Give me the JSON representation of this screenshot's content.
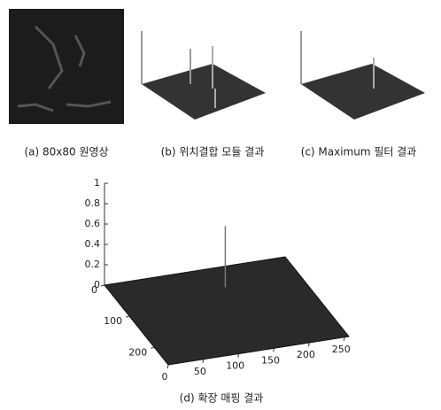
{
  "figure": {
    "panels": [
      {
        "caption": "(a) 80x80 원영상"
      },
      {
        "caption": "(b) 위치결합 모듈 결과"
      },
      {
        "caption": "(c) Maximum 필터 결과"
      },
      {
        "caption": "(d) 확장 매핑 결과"
      }
    ],
    "surface": {
      "type": "surface3d",
      "xlim": [
        0,
        256
      ],
      "xticks": [
        0,
        50,
        100,
        150,
        200,
        250
      ],
      "ylim": [
        0,
        256
      ],
      "yticks": [
        0,
        100,
        200
      ],
      "zlim": [
        0,
        1
      ],
      "zticks": [
        0,
        0.2,
        0.4,
        0.6,
        0.8,
        1
      ],
      "peak": {
        "x": 150,
        "y": 60,
        "z": 0.6
      }
    }
  }
}
